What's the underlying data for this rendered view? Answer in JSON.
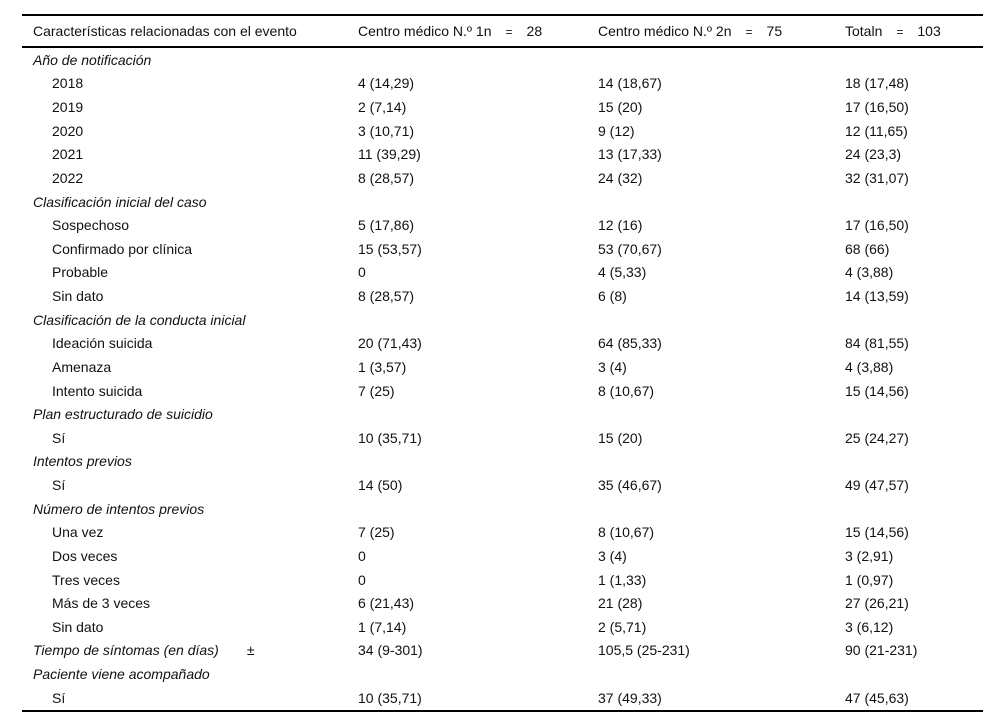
{
  "table": {
    "header": {
      "characteristics": "Características relacionadas con el evento",
      "center1": {
        "label": "Centro médico N.º 1n",
        "equals": "=",
        "value": "28"
      },
      "center2": {
        "label": "Centro médico N.º 2n",
        "equals": "=",
        "value": "75"
      },
      "total": {
        "label": "Totaln",
        "equals": "=",
        "value": "103"
      }
    },
    "rows": [
      {
        "type": "section",
        "label": "Año de notificación",
        "c1": "",
        "c2": "",
        "c3": ""
      },
      {
        "type": "item",
        "label": "2018",
        "c1": "4 (14,29)",
        "c2": "14 (18,67)",
        "c3": "18 (17,48)"
      },
      {
        "type": "item",
        "label": "2019",
        "c1": "2 (7,14)",
        "c2": "15 (20)",
        "c3": "17 (16,50)"
      },
      {
        "type": "item",
        "label": "2020",
        "c1": "3 (10,71)",
        "c2": "9 (12)",
        "c3": "12 (11,65)"
      },
      {
        "type": "item",
        "label": "2021",
        "c1": "11 (39,29)",
        "c2": "13 (17,33)",
        "c3": "24 (23,3)"
      },
      {
        "type": "item",
        "label": "2022",
        "c1": "8 (28,57)",
        "c2": "24 (32)",
        "c3": "32 (31,07)"
      },
      {
        "type": "section",
        "label": "Clasificación inicial del caso",
        "c1": "",
        "c2": "",
        "c3": ""
      },
      {
        "type": "item",
        "label": "Sospechoso",
        "c1": "5 (17,86)",
        "c2": "12 (16)",
        "c3": "17 (16,50)"
      },
      {
        "type": "item",
        "label": "Confirmado por clínica",
        "c1": "15 (53,57)",
        "c2": "53 (70,67)",
        "c3": "68 (66)"
      },
      {
        "type": "item",
        "label": "Probable",
        "c1": "0",
        "c2": "4 (5,33)",
        "c3": "4 (3,88)"
      },
      {
        "type": "item",
        "label": "Sin dato",
        "c1": "8 (28,57)",
        "c2": "6 (8)",
        "c3": "14 (13,59)"
      },
      {
        "type": "section",
        "label": "Clasificación de la conducta inicial",
        "c1": "",
        "c2": "",
        "c3": ""
      },
      {
        "type": "item",
        "label": "Ideación suicida",
        "c1": "20 (71,43)",
        "c2": "64 (85,33)",
        "c3": "84 (81,55)"
      },
      {
        "type": "item",
        "label": "Amenaza",
        "c1": "1 (3,57)",
        "c2": "3 (4)",
        "c3": "4 (3,88)"
      },
      {
        "type": "item",
        "label": "Intento suicida",
        "c1": "7 (25)",
        "c2": "8 (10,67)",
        "c3": "15 (14,56)"
      },
      {
        "type": "section",
        "label": "Plan estructurado de suicidio",
        "c1": "",
        "c2": "",
        "c3": ""
      },
      {
        "type": "item",
        "label": "Sí",
        "c1": "10 (35,71)",
        "c2": "15 (20)",
        "c3": "25 (24,27)"
      },
      {
        "type": "section",
        "label": "Intentos previos",
        "c1": "",
        "c2": "",
        "c3": ""
      },
      {
        "type": "item",
        "label": "Sí",
        "c1": "14 (50)",
        "c2": "35 (46,67)",
        "c3": "49 (47,57)"
      },
      {
        "type": "section",
        "label": "Número de intentos previos",
        "c1": "",
        "c2": "",
        "c3": ""
      },
      {
        "type": "item",
        "label": "Una vez",
        "c1": "7 (25)",
        "c2": "8 (10,67)",
        "c3": "15 (14,56)"
      },
      {
        "type": "item",
        "label": "Dos veces",
        "c1": "0",
        "c2": "3 (4)",
        "c3": "3 (2,91)"
      },
      {
        "type": "item",
        "label": "Tres veces",
        "c1": "0",
        "c2": "1 (1,33)",
        "c3": "1 (0,97)"
      },
      {
        "type": "item",
        "label": "Más de 3 veces",
        "c1": "6 (21,43)",
        "c2": "21 (28)",
        "c3": "27 (26,21)"
      },
      {
        "type": "item",
        "label": "Sin dato",
        "c1": "1 (7,14)",
        "c2": "2 (5,71)",
        "c3": "3 (6,12)"
      },
      {
        "type": "measure",
        "label": "Tiempo de síntomas (en días)",
        "suffix": "±",
        "c1": "34 (9-301)",
        "c2": "105,5 (25-231)",
        "c3": "90 (21-231)"
      },
      {
        "type": "section",
        "label": "Paciente viene acompañado",
        "c1": "",
        "c2": "",
        "c3": ""
      },
      {
        "type": "item",
        "label": "Sí",
        "c1": "10 (35,71)",
        "c2": "37 (49,33)",
        "c3": "47 (45,63)"
      }
    ]
  }
}
